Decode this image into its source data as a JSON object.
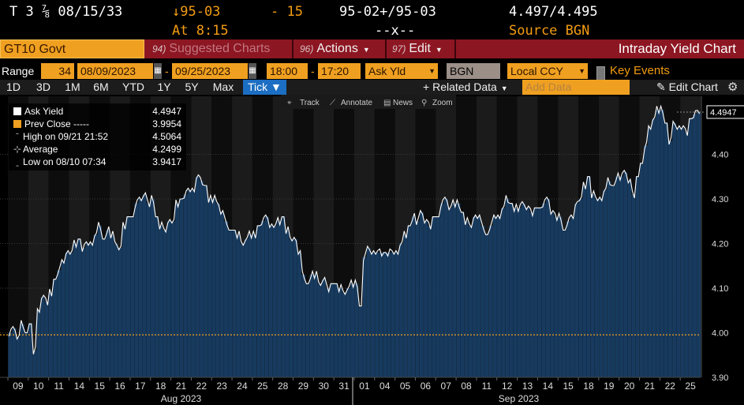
{
  "ticker": {
    "security": "T 3 ⅞ 08/15/33",
    "change_price": "↓95-03",
    "change_amount": "- 15",
    "bid_ask_price": "95-02+/95-03",
    "bid_ask_yield": "4.497/4.495",
    "time": "At 8:15",
    "size": "--x--",
    "source": "Source BGN"
  },
  "function_bar": {
    "security_name": "GT10 Govt",
    "suggested_num": "94)",
    "suggested_label": "Suggested Charts",
    "actions_num": "96)",
    "actions_label": "Actions",
    "edit_num": "97)",
    "edit_label": "Edit",
    "title": "Intraday Yield Chart"
  },
  "range_bar": {
    "range_label": "Range",
    "period_count": "34",
    "start_date": "08/09/2023",
    "end_date": "09/25/2023",
    "start_time": "18:00",
    "end_time": "17:20",
    "field": "Ask Yld",
    "source": "BGN",
    "currency": "Local CCY",
    "key_events": "Key Events"
  },
  "period_bar": {
    "periods": [
      "1D",
      "3D",
      "1M",
      "6M",
      "YTD",
      "1Y",
      "5Y",
      "Max"
    ],
    "active": "Tick ▼",
    "related": "Related Data",
    "add_data_placeholder": "Add Data",
    "edit_chart": "Edit Chart"
  },
  "tools": {
    "track": "Track",
    "annotate": "Annotate",
    "news": "News",
    "zoom": "Zoom"
  },
  "legend": {
    "ask_yield_label": "Ask Yield",
    "ask_yield_value": "4.4947",
    "prev_close_label": "Prev Close -----",
    "prev_close_value": "3.9954",
    "high_label": "High on 09/21 21:52",
    "high_value": "4.5064",
    "average_label": "Average",
    "average_value": "4.2499",
    "low_label": "Low on 08/10 07:34",
    "low_value": "3.9417"
  },
  "colors": {
    "bar_fill": "#173a5e",
    "line": "#ffffff",
    "prev_close": "#f0a020",
    "accent": "#8c1622"
  },
  "chart_data": {
    "type": "area",
    "current_value_label": "4.4947",
    "ylim": [
      3.9,
      4.53
    ],
    "y_ticks": [
      "3.90",
      "4.00",
      "4.10",
      "4.20",
      "4.30",
      "4.40"
    ],
    "y_tick_values": [
      3.9,
      4.0,
      4.1,
      4.2,
      4.3,
      4.4
    ],
    "prev_close": 3.9954,
    "x_day_labels": [
      "09",
      "10",
      "11",
      "14",
      "15",
      "16",
      "17",
      "18",
      "21",
      "22",
      "23",
      "24",
      "25",
      "28",
      "29",
      "30",
      "31",
      "01",
      "04",
      "05",
      "06",
      "07",
      "08",
      "11",
      "12",
      "13",
      "14",
      "15",
      "18",
      "19",
      "20",
      "21",
      "22",
      "25"
    ],
    "month_labels": [
      "Aug 2023",
      "Sep 2023"
    ],
    "series": [
      {
        "values": [
          [
            4.0,
            4.01,
            3.99,
            4.02,
            4.0
          ],
          [
            4.02,
            3.96,
            4.05,
            4.08,
            4.07
          ],
          [
            4.09,
            4.12,
            4.14,
            4.16,
            4.18
          ],
          [
            4.18,
            4.2,
            4.21,
            4.19,
            4.2
          ],
          [
            4.2,
            4.22,
            4.24,
            4.21,
            4.23
          ],
          [
            4.22,
            4.2,
            4.19,
            4.24,
            4.26
          ],
          [
            4.26,
            4.29,
            4.3,
            4.31,
            4.29
          ],
          [
            4.3,
            4.26,
            4.24,
            4.23,
            4.25
          ],
          [
            4.25,
            4.29,
            4.3,
            4.31,
            4.32
          ],
          [
            4.32,
            4.35,
            4.34,
            4.33,
            4.3
          ],
          [
            4.3,
            4.29,
            4.27,
            4.25,
            4.23
          ],
          [
            4.23,
            4.22,
            4.2,
            4.21,
            4.22
          ],
          [
            4.22,
            4.24,
            4.25,
            4.26,
            4.24
          ],
          [
            4.24,
            4.25,
            4.26,
            4.23,
            4.21
          ],
          [
            4.21,
            4.18,
            4.13,
            4.11,
            4.13
          ],
          [
            4.13,
            4.11,
            4.12,
            4.1,
            4.11
          ],
          [
            4.11,
            4.1,
            4.09,
            4.1,
            4.11
          ],
          [
            4.11,
            4.06,
            4.17,
            4.19,
            4.18
          ],
          [
            4.18,
            4.18,
            4.18,
            4.18,
            4.18
          ],
          [
            4.18,
            4.2,
            4.22,
            4.24,
            4.26
          ],
          [
            4.25,
            4.27,
            4.25,
            4.24,
            4.26
          ],
          [
            4.26,
            4.29,
            4.3,
            4.28,
            4.29
          ],
          [
            4.29,
            4.27,
            4.25,
            4.24,
            4.26
          ],
          [
            4.26,
            4.24,
            4.22,
            4.24,
            4.26
          ],
          [
            4.26,
            4.28,
            4.3,
            4.29,
            4.28
          ],
          [
            4.28,
            4.29,
            4.28,
            4.27,
            4.28
          ],
          [
            4.28,
            4.29,
            4.3,
            4.27,
            4.26
          ],
          [
            4.26,
            4.23,
            4.25,
            4.26,
            4.29
          ],
          [
            4.3,
            4.33,
            4.35,
            4.31,
            4.3
          ],
          [
            4.3,
            4.32,
            4.34,
            4.33,
            4.35
          ],
          [
            4.35,
            4.36,
            4.34,
            4.31,
            4.35
          ],
          [
            4.38,
            4.42,
            4.46,
            4.48,
            4.5
          ],
          [
            4.5,
            4.47,
            4.43,
            4.47,
            4.46
          ],
          [
            4.46,
            4.45,
            4.48,
            4.49,
            4.4947
          ]
        ]
      }
    ]
  }
}
